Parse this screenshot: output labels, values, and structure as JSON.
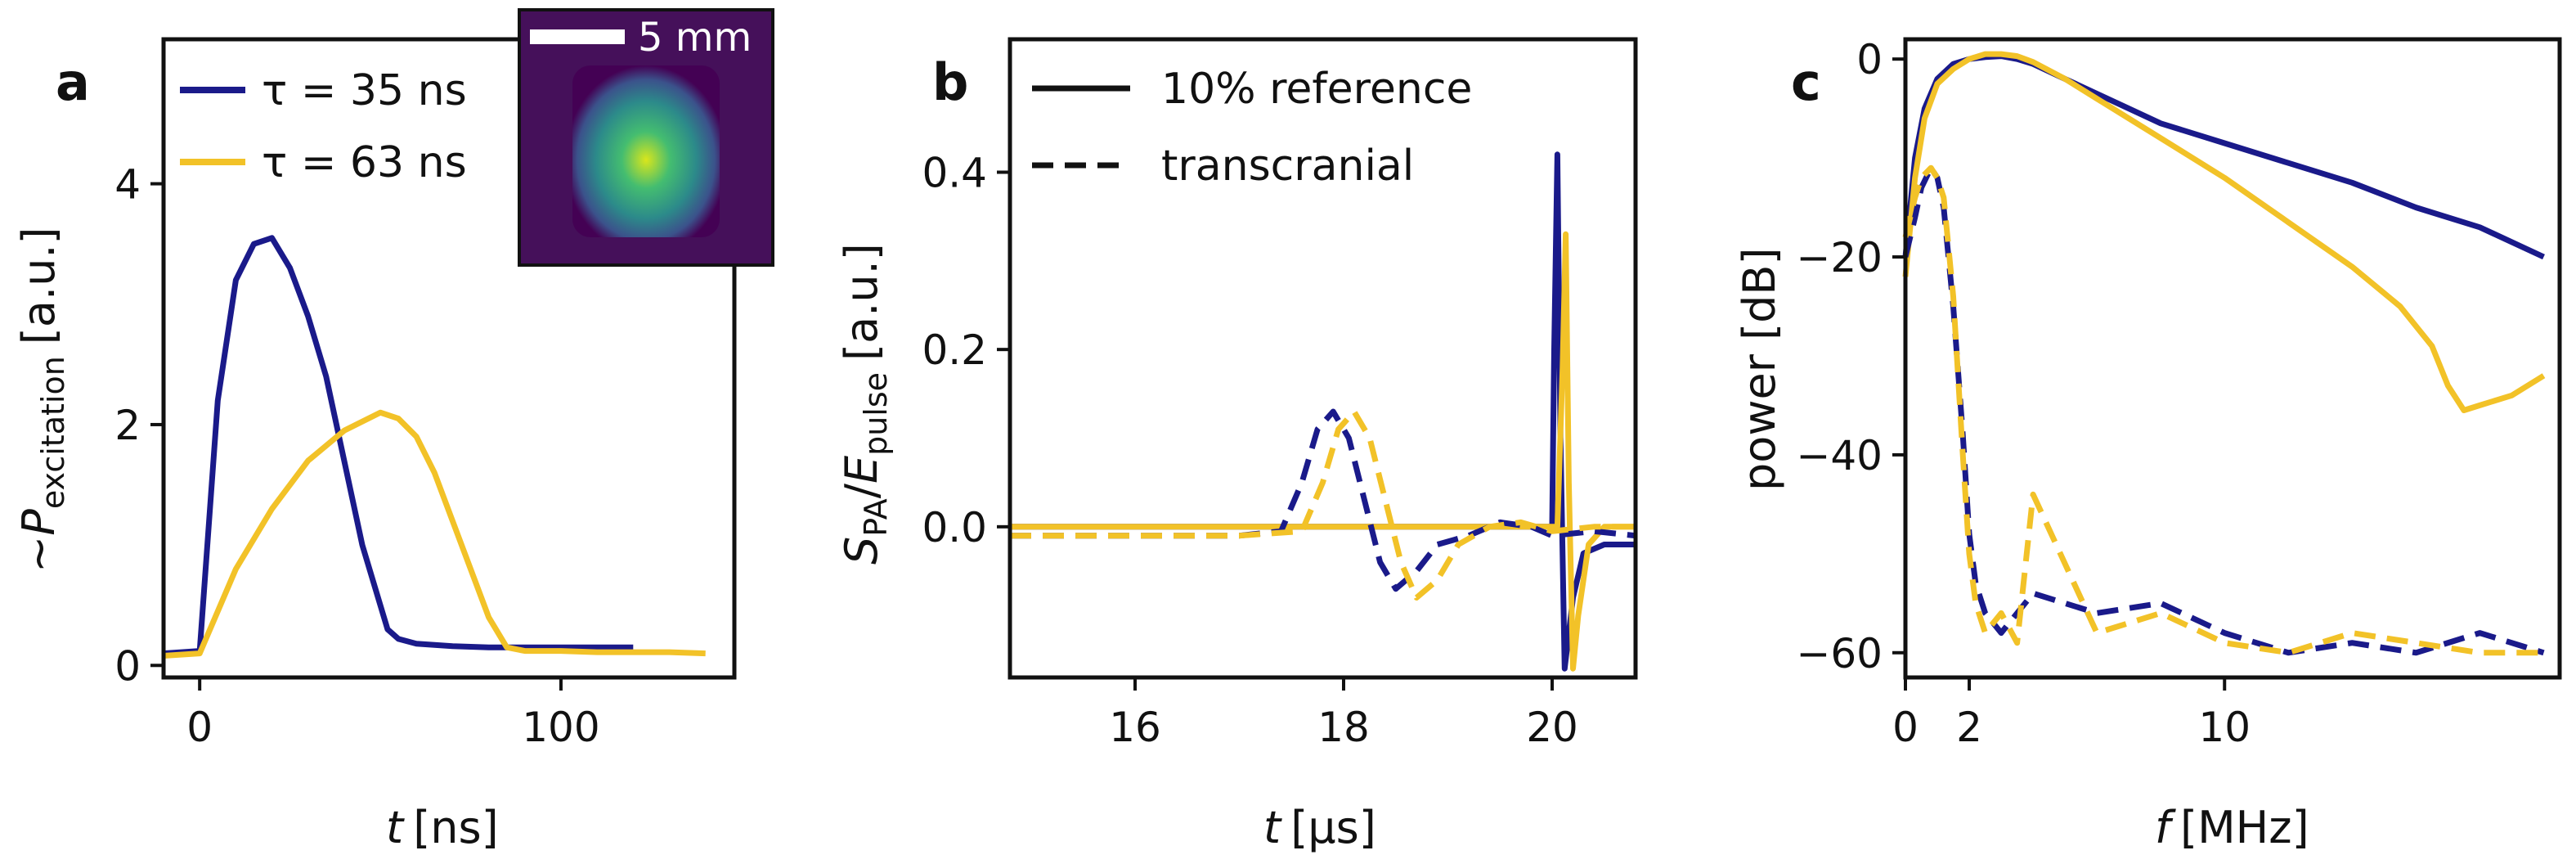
{
  "chart_data": [
    {
      "panel": "a",
      "type": "line",
      "xlabel_symbol": "t",
      "xlabel_unit": "[ns]",
      "ylabel_prefix": "~",
      "ylabel_symbol": "P",
      "ylabel_sub": "excitation",
      "ylabel_unit": "[a.u.]",
      "xlim": [
        -10,
        148
      ],
      "ylim": [
        -0.1,
        5.2
      ],
      "xticks": [
        0,
        100
      ],
      "yticks": [
        0,
        2,
        4
      ],
      "legend": {
        "placement": "top-left"
      },
      "series": [
        {
          "name": "τ = 35 ns",
          "color": "#1a1a8a",
          "x": [
            -10,
            0,
            5,
            10,
            15,
            20,
            25,
            30,
            35,
            40,
            45,
            50,
            52,
            55,
            60,
            70,
            80,
            90,
            100,
            110,
            120
          ],
          "y": [
            0.1,
            0.12,
            2.2,
            3.2,
            3.5,
            3.55,
            3.3,
            2.9,
            2.4,
            1.7,
            1.0,
            0.5,
            0.3,
            0.22,
            0.18,
            0.16,
            0.15,
            0.15,
            0.15,
            0.15,
            0.15
          ]
        },
        {
          "name": "τ = 63 ns",
          "color": "#f2c228",
          "x": [
            -10,
            0,
            5,
            10,
            20,
            30,
            40,
            50,
            55,
            60,
            65,
            70,
            75,
            80,
            85,
            90,
            100,
            110,
            120,
            130,
            140
          ],
          "y": [
            0.08,
            0.1,
            0.45,
            0.8,
            1.3,
            1.7,
            1.95,
            2.1,
            2.05,
            1.9,
            1.6,
            1.2,
            0.8,
            0.4,
            0.15,
            0.12,
            0.12,
            0.11,
            0.11,
            0.11,
            0.1
          ]
        }
      ],
      "inset": {
        "label": "5 mm",
        "description": "beam profile image"
      }
    },
    {
      "panel": "b",
      "type": "line",
      "xlabel_symbol": "t",
      "xlabel_unit": "[µs]",
      "ylabel_symbol_1": "S",
      "ylabel_sub_1": "PA",
      "ylabel_slash": "/",
      "ylabel_symbol_2": "E",
      "ylabel_sub_2": "pulse",
      "ylabel_unit": "[a.u.]",
      "xlim": [
        14.8,
        20.8
      ],
      "ylim": [
        -0.17,
        0.55
      ],
      "xticks": [
        16,
        18,
        20
      ],
      "yticks": [
        "0.0",
        "0.2",
        "0.4"
      ],
      "legend": {
        "placement": "top-left",
        "entries": [
          "10% reference",
          "transcranial"
        ],
        "styles": [
          "solid",
          "dashed"
        ]
      },
      "series": [
        {
          "name": "reference blue",
          "color": "#1a1a8a",
          "style": "solid",
          "x": [
            14.8,
            17.5,
            18.5,
            19.8,
            20.0,
            20.02,
            20.05,
            20.08,
            20.12,
            20.2,
            20.3,
            20.5,
            20.8
          ],
          "y": [
            0.0,
            0.0,
            0.0,
            0.0,
            0.0,
            0.2,
            0.42,
            0.1,
            -0.16,
            -0.08,
            -0.03,
            -0.02,
            -0.02
          ]
        },
        {
          "name": "reference yellow",
          "color": "#f2c228",
          "style": "solid",
          "x": [
            14.8,
            17.5,
            18.5,
            19.9,
            20.05,
            20.1,
            20.13,
            20.16,
            20.2,
            20.25,
            20.35,
            20.5,
            20.8
          ],
          "y": [
            0.0,
            0.0,
            0.0,
            0.0,
            0.0,
            0.18,
            0.33,
            0.05,
            -0.16,
            -0.1,
            -0.02,
            0.0,
            0.0
          ]
        },
        {
          "name": "transcranial blue",
          "color": "#1a1a8a",
          "style": "dashed",
          "x": [
            14.8,
            16.0,
            17.0,
            17.4,
            17.6,
            17.75,
            17.9,
            18.05,
            18.2,
            18.35,
            18.5,
            18.7,
            18.9,
            19.2,
            19.5,
            19.8,
            20.0,
            20.4,
            20.8
          ],
          "y": [
            -0.01,
            -0.01,
            -0.01,
            -0.005,
            0.05,
            0.11,
            0.13,
            0.1,
            0.03,
            -0.04,
            -0.07,
            -0.05,
            -0.02,
            -0.01,
            0.005,
            0.0,
            -0.01,
            -0.005,
            -0.01
          ]
        },
        {
          "name": "transcranial yellow",
          "color": "#f2c228",
          "style": "dashed",
          "x": [
            14.8,
            16.0,
            17.0,
            17.6,
            17.8,
            17.95,
            18.1,
            18.25,
            18.4,
            18.55,
            18.7,
            18.9,
            19.1,
            19.4,
            19.7,
            20.0,
            20.4,
            20.8
          ],
          "y": [
            -0.01,
            -0.01,
            -0.01,
            -0.005,
            0.05,
            0.11,
            0.13,
            0.1,
            0.03,
            -0.04,
            -0.08,
            -0.06,
            -0.02,
            0.0,
            0.005,
            -0.005,
            0.0,
            0.0
          ]
        }
      ]
    },
    {
      "panel": "c",
      "type": "line",
      "xlabel_symbol": "f",
      "xlabel_unit": "[MHz]",
      "ylabel": "power [dB]",
      "xlim": [
        0,
        20.5
      ],
      "ylim": [
        -62.5,
        2
      ],
      "xticks": [
        0,
        2,
        10
      ],
      "yticks": [
        "0",
        "−20",
        "−40",
        "−60"
      ],
      "series": [
        {
          "name": "reference blue",
          "color": "#1a1a8a",
          "style": "solid",
          "x": [
            0,
            0.3,
            0.6,
            1.0,
            1.5,
            2.0,
            2.5,
            3.0,
            3.5,
            4.0,
            5.0,
            6.0,
            8.0,
            10.0,
            12.0,
            14.0,
            16.0,
            18.0,
            20.0
          ],
          "y": [
            -20,
            -10,
            -5,
            -2,
            -0.5,
            0,
            0.2,
            0.3,
            0,
            -0.5,
            -2,
            -3.5,
            -6.5,
            -8.5,
            -10.5,
            -12.5,
            -15,
            -17,
            -20
          ]
        },
        {
          "name": "reference yellow",
          "color": "#f2c228",
          "style": "solid",
          "x": [
            0,
            0.3,
            0.6,
            1.0,
            1.5,
            2.0,
            2.5,
            3.0,
            3.5,
            4.0,
            5.0,
            6.0,
            8.0,
            10.0,
            12.0,
            14.0,
            15.5,
            16.5,
            17.0,
            17.5,
            18.0,
            19.0,
            20.0
          ],
          "y": [
            -22,
            -12,
            -6,
            -2.5,
            -1,
            0,
            0.5,
            0.5,
            0.3,
            -0.3,
            -2,
            -4,
            -8,
            -12,
            -16.5,
            -21,
            -25,
            -29,
            -33,
            -35.5,
            -35,
            -34,
            -32
          ]
        },
        {
          "name": "transcranial blue",
          "color": "#1a1a8a",
          "style": "dashed",
          "x": [
            0,
            0.3,
            0.5,
            0.8,
            1.0,
            1.2,
            1.5,
            1.8,
            2.0,
            2.2,
            2.5,
            3.0,
            4.0,
            6.0,
            8.0,
            10.0,
            12.0,
            14.0,
            16.0,
            18.0,
            20.0
          ],
          "y": [
            -20,
            -16,
            -13,
            -11,
            -12,
            -15,
            -25,
            -38,
            -48,
            -53,
            -56,
            -58,
            -54,
            -56,
            -55,
            -58,
            -60,
            -59,
            -60,
            -58,
            -60
          ]
        },
        {
          "name": "transcranial yellow",
          "color": "#f2c228",
          "style": "dashed",
          "x": [
            0,
            0.3,
            0.5,
            0.8,
            1.0,
            1.2,
            1.5,
            1.8,
            2.0,
            2.2,
            2.5,
            3.0,
            3.5,
            4.0,
            6.0,
            8.0,
            10.0,
            12.0,
            14.0,
            16.0,
            18.0,
            20.0
          ],
          "y": [
            -18,
            -14,
            -12,
            -11,
            -12,
            -14,
            -24,
            -40,
            -50,
            -55,
            -58,
            -56,
            -59,
            -44,
            -58,
            -56,
            -59,
            -60,
            -58,
            -59,
            -60,
            -60
          ]
        }
      ]
    }
  ]
}
